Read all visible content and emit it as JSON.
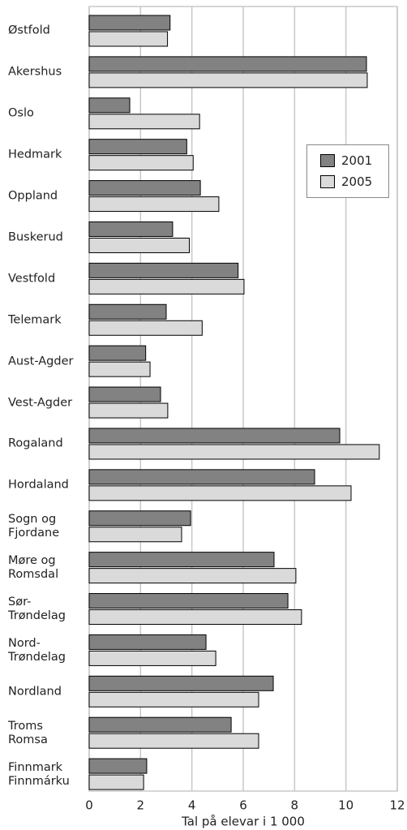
{
  "chart_data": {
    "type": "barh",
    "xlabel": "Tal på elevar i 1 000",
    "categories": [
      "Østfold",
      "Akershus",
      "Oslo",
      "Hedmark",
      "Oppland",
      "Buskerud",
      "Vestfold",
      "Telemark",
      "Aust-Agder",
      "Vest-Agder",
      "Rogaland",
      "Hordaland",
      "Sogn og\nFjordane",
      "Møre og\nRomsdal",
      "Sør-\nTrøndelag",
      "Nord-\nTrøndelag",
      "Nordland",
      "Troms\nRomsa",
      "Finnmark\nFinnmárku"
    ],
    "series": [
      {
        "name": "2001",
        "color": "#828282",
        "values": [
          3.15,
          10.8,
          1.58,
          3.8,
          4.33,
          3.25,
          5.8,
          3.0,
          2.2,
          2.78,
          9.76,
          8.78,
          3.95,
          7.2,
          7.74,
          4.55,
          7.17,
          5.53,
          2.24
        ]
      },
      {
        "name": "2005",
        "color": "#dadada",
        "values": [
          3.05,
          10.83,
          4.3,
          4.05,
          5.05,
          3.9,
          6.03,
          4.4,
          2.37,
          3.06,
          11.3,
          10.2,
          3.6,
          8.05,
          8.27,
          4.93,
          6.6,
          6.6,
          2.12
        ]
      }
    ],
    "xlim": [
      0,
      12
    ],
    "xticks": [
      0,
      2,
      4,
      6,
      8,
      10,
      12
    ],
    "grid": true
  }
}
